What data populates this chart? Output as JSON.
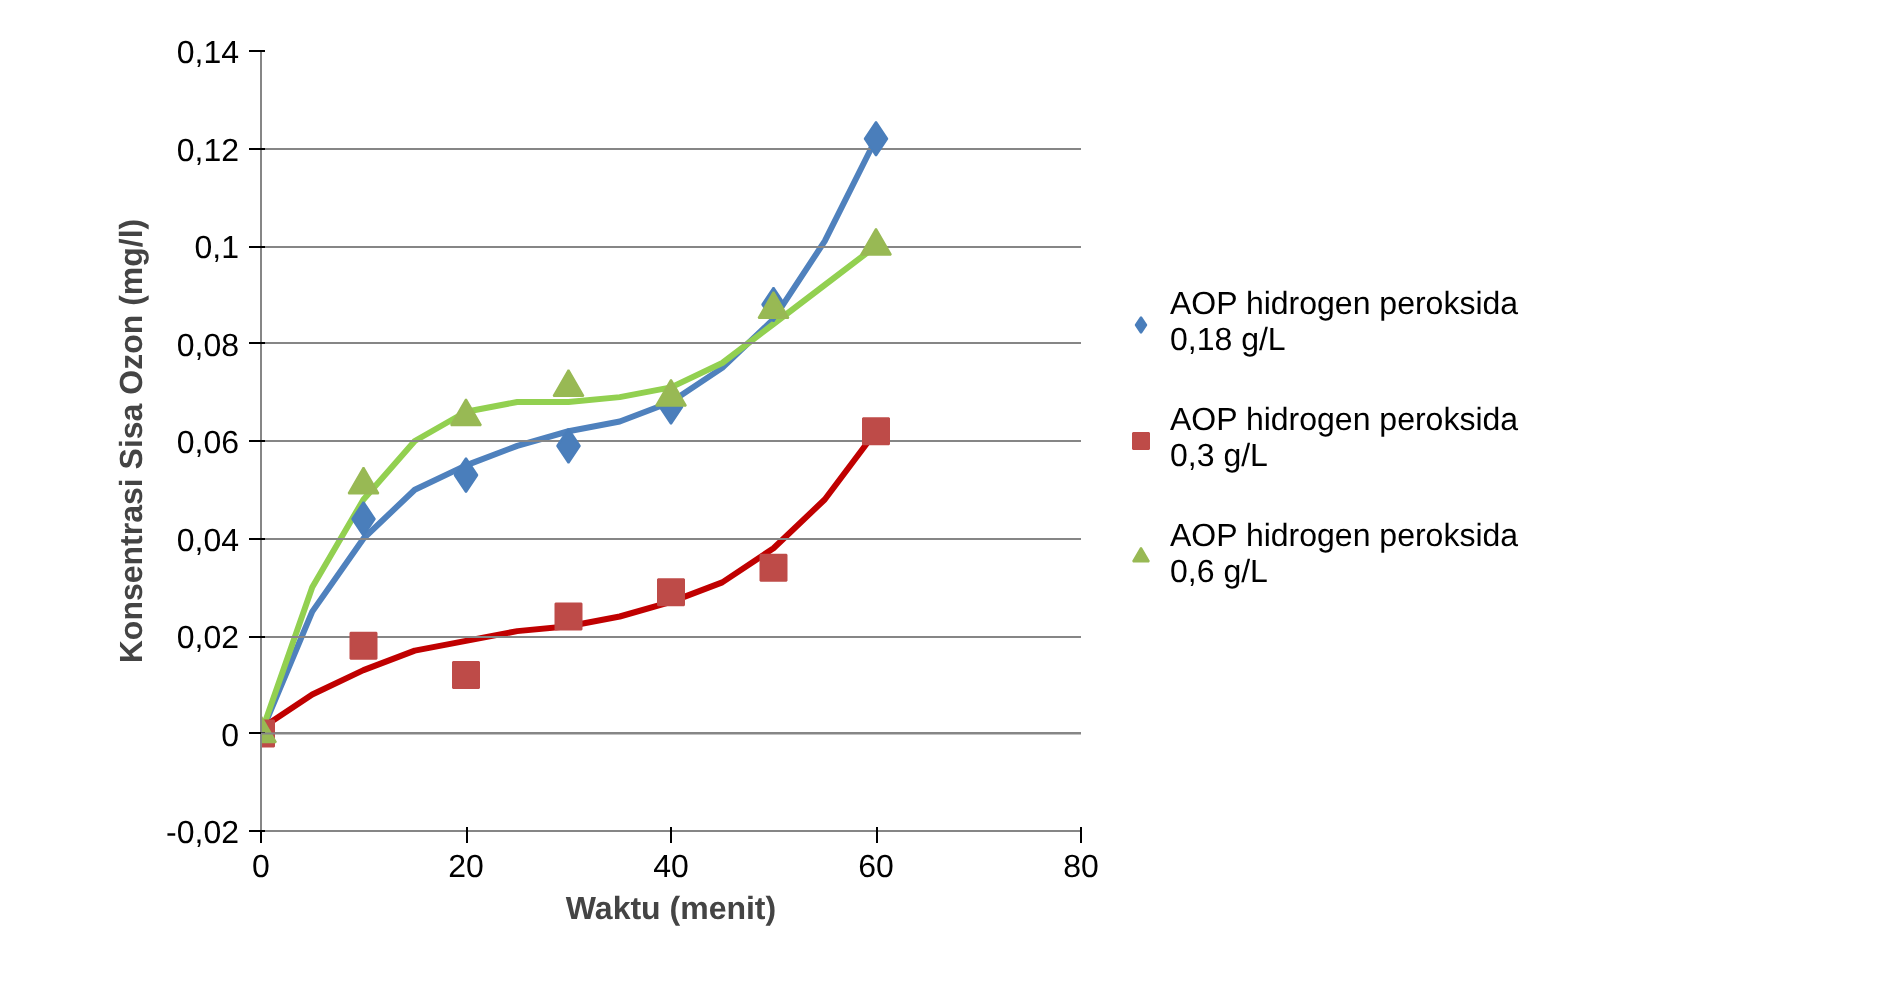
{
  "chart_data": {
    "type": "scatter",
    "xlabel": "Waktu (menit)",
    "ylabel": "Konsentrasi Sisa Ozon (mg/l)",
    "xlim": [
      0,
      80
    ],
    "xticks": [
      0,
      20,
      40,
      60,
      80
    ],
    "ylim": [
      -0.02,
      0.14
    ],
    "yticks": [
      {
        "value": -0.02,
        "label": "-0,02"
      },
      {
        "value": 0,
        "label": "0"
      },
      {
        "value": 0.02,
        "label": "0,02"
      },
      {
        "value": 0.04,
        "label": "0,04"
      },
      {
        "value": 0.06,
        "label": "0,06"
      },
      {
        "value": 0.08,
        "label": "0,08"
      },
      {
        "value": 0.1,
        "label": "0,1"
      },
      {
        "value": 0.12,
        "label": "0,12"
      },
      {
        "value": 0.14,
        "label": "0,14"
      }
    ],
    "grid": "y",
    "legend": "right",
    "x": [
      0,
      10,
      20,
      30,
      40,
      50,
      60
    ],
    "series": [
      {
        "name": "AOP hidrogen peroksida 0,18 g/L",
        "color": "#4a7ebb",
        "marker": "diamond",
        "values": [
          null,
          0.044,
          0.053,
          0.059,
          0.067,
          0.088,
          0.122
        ]
      },
      {
        "name": "AOP hidrogen peroksida 0,3 g/L",
        "color": "#be4b48",
        "marker": "square",
        "values": [
          0,
          0.018,
          0.012,
          0.024,
          0.029,
          0.034,
          0.062
        ]
      },
      {
        "name": "AOP hidrogen peroksida 0,6 g/L",
        "color": "#98b954",
        "marker": "triangle",
        "values": [
          0,
          0.051,
          0.065,
          0.071,
          0.069,
          0.087,
          0.1
        ]
      },
      {
        "type": "line",
        "color": "#4f81bd",
        "x": [
          0,
          5,
          10,
          15,
          20,
          25,
          30,
          35,
          40,
          45,
          50,
          55,
          60
        ],
        "values": [
          0,
          0.025,
          0.04,
          0.05,
          0.055,
          0.059,
          0.062,
          0.064,
          0.068,
          0.075,
          0.085,
          0.101,
          0.122
        ]
      },
      {
        "type": "line",
        "color": "#c00000",
        "x": [
          0,
          5,
          10,
          15,
          20,
          25,
          30,
          35,
          40,
          45,
          50,
          55,
          60
        ],
        "values": [
          0.001,
          0.008,
          0.013,
          0.017,
          0.019,
          0.021,
          0.022,
          0.024,
          0.027,
          0.031,
          0.038,
          0.048,
          0.062
        ]
      },
      {
        "type": "line",
        "color": "#92d050",
        "x": [
          0,
          5,
          10,
          15,
          20,
          25,
          30,
          35,
          40,
          45,
          50,
          55,
          60
        ],
        "values": [
          0,
          0.03,
          0.048,
          0.06,
          0.066,
          0.068,
          0.068,
          0.069,
          0.071,
          0.076,
          0.084,
          0.092,
          0.1
        ]
      }
    ]
  }
}
